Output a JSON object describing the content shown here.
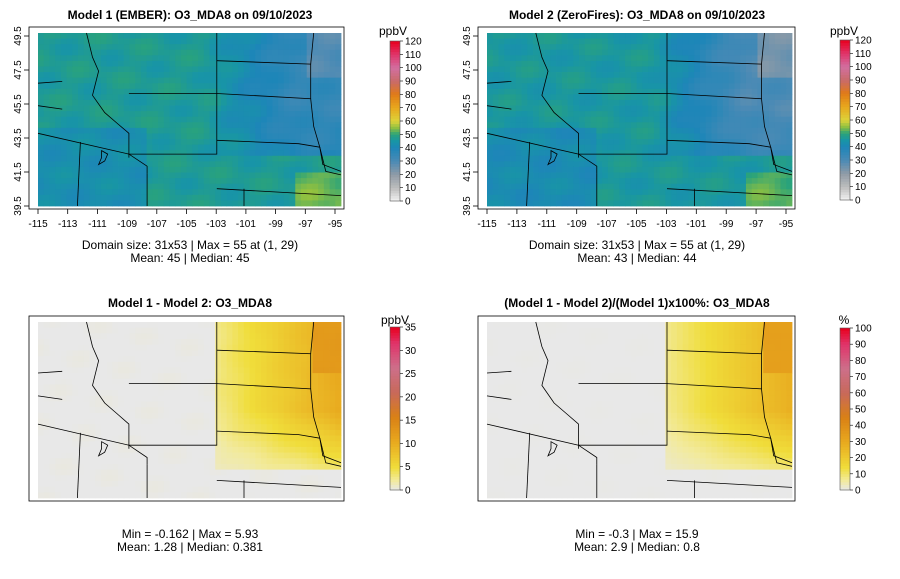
{
  "chart_data": [
    {
      "type": "heatmap",
      "title": "Model 1 (EMBER): O3_MDA8 on 09/10/2023",
      "unit": "ppbV",
      "palette": "ozone",
      "colorbar_ticks": [
        "0",
        "10",
        "20",
        "30",
        "40",
        "50",
        "60",
        "70",
        "80",
        "90",
        "100",
        "110",
        "120"
      ],
      "colorbar_range": [
        0,
        120
      ],
      "x_ticks": [
        "-115",
        "-113",
        "-111",
        "-109",
        "-107",
        "-105",
        "-103",
        "-101",
        "-99",
        "-97",
        "-95"
      ],
      "y_ticks": [
        "39.5",
        "41.5",
        "43.5",
        "45.5",
        "47.5",
        "49.5"
      ],
      "xlim": [
        -115,
        -95
      ],
      "ylim": [
        39.5,
        49.5
      ],
      "show_axes": true,
      "field": {
        "base": 47,
        "east_low": 12,
        "peak_value": 55
      },
      "stats": [
        "Domain size: 31x53 | Max = 55 at (1, 29)",
        "Mean: 45 |  Median: 45"
      ]
    },
    {
      "type": "heatmap",
      "title": "Model 2 (ZeroFires): O3_MDA8 on 09/10/2023",
      "unit": "ppbV",
      "palette": "ozone",
      "colorbar_ticks": [
        "0",
        "10",
        "20",
        "30",
        "40",
        "50",
        "60",
        "70",
        "80",
        "90",
        "100",
        "110",
        "120"
      ],
      "colorbar_range": [
        0,
        120
      ],
      "x_ticks": [
        "-115",
        "-113",
        "-111",
        "-109",
        "-107",
        "-105",
        "-103",
        "-101",
        "-99",
        "-97",
        "-95"
      ],
      "y_ticks": [
        "39.5",
        "41.5",
        "43.5",
        "45.5",
        "47.5",
        "49.5"
      ],
      "xlim": [
        -115,
        -95
      ],
      "ylim": [
        39.5,
        49.5
      ],
      "show_axes": true,
      "field": {
        "base": 46,
        "east_low": 16,
        "peak_value": 55
      },
      "stats": [
        "Domain size: 31x53 | Max = 55 at (1, 29)",
        "Mean: 43 |  Median: 44"
      ]
    },
    {
      "type": "heatmap",
      "title": "Model 1 - Model 2: O3_MDA8",
      "unit": "ppbV",
      "palette": "diff",
      "colorbar_ticks": [
        "0",
        "5",
        "10",
        "15",
        "20",
        "25",
        "30",
        "35"
      ],
      "colorbar_range": [
        0,
        35
      ],
      "x_ticks": [],
      "y_ticks": [],
      "xlim": [
        -115,
        -95
      ],
      "ylim": [
        39.5,
        49.5
      ],
      "show_axes": false,
      "field": {
        "min": -0.162,
        "max": 5.93
      },
      "stats": [
        "Min = -0.162 | Max = 5.93",
        "Mean: 1.28 |  Median: 0.381"
      ]
    },
    {
      "type": "heatmap",
      "title": "(Model 1 - Model 2)/(Model 1)x100%: O3_MDA8",
      "unit": "%",
      "palette": "diff",
      "colorbar_ticks": [
        "0",
        "10",
        "20",
        "30",
        "40",
        "50",
        "60",
        "70",
        "80",
        "90",
        "100"
      ],
      "colorbar_range": [
        0,
        100
      ],
      "x_ticks": [],
      "y_ticks": [],
      "xlim": [
        -115,
        -95
      ],
      "ylim": [
        39.5,
        49.5
      ],
      "show_axes": false,
      "field": {
        "min": -0.3,
        "max": 15.9
      },
      "stats": [
        "Min = -0.3 | Max = 15.9",
        "Mean: 2.9 |  Median: 0.8"
      ]
    }
  ]
}
